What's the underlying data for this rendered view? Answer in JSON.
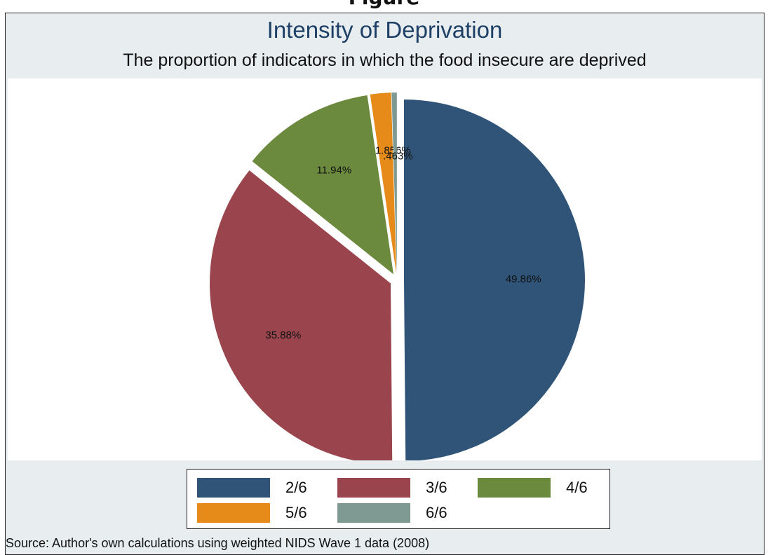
{
  "page": {
    "top_fragment_text": "Figure"
  },
  "chart_data": {
    "type": "pie",
    "title": "Intensity of Deprivation",
    "subtitle": "The proportion of indicators in which the food insecure are deprived",
    "categories": [
      "2/6",
      "3/6",
      "4/6",
      "5/6",
      "6/6"
    ],
    "values": [
      49.86,
      35.88,
      11.94,
      1.856,
      0.463
    ],
    "data_labels": [
      "49.86%",
      "35.88%",
      "11.94%",
      "1.856%",
      ".463%"
    ],
    "colors": [
      "#2f5478",
      "#9a454d",
      "#6b8a3e",
      "#e68b1a",
      "#7f9a93"
    ],
    "exploded": true,
    "legend_position": "bottom",
    "note": "Source: Author's own calculations using weighted NIDS Wave 1 data (2008)"
  }
}
